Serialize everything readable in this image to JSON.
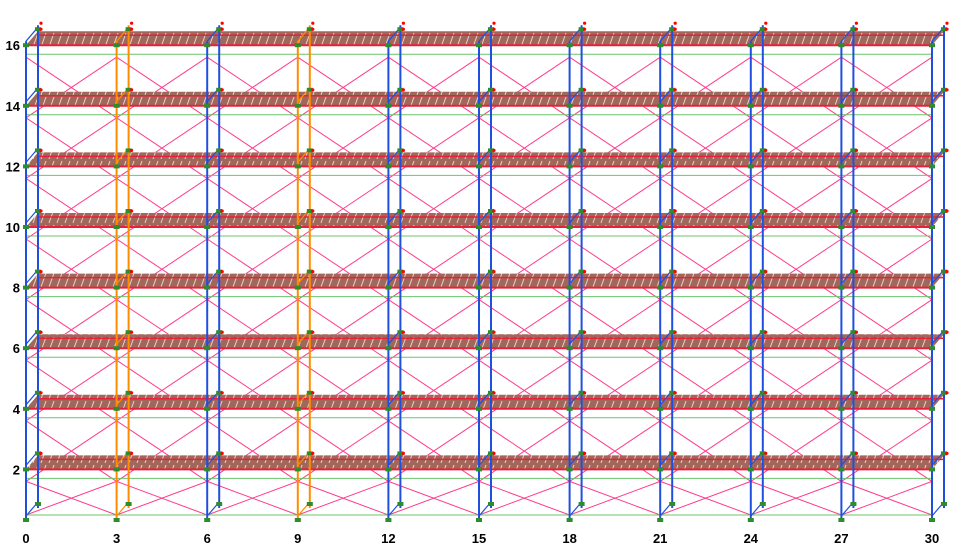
{
  "x_axis": {
    "labels": [
      "0",
      "3",
      "6",
      "9",
      "12",
      "15",
      "18",
      "21",
      "24",
      "27",
      "30"
    ],
    "values": [
      0,
      3,
      6,
      9,
      12,
      15,
      18,
      21,
      24,
      27,
      30
    ]
  },
  "y_axis": {
    "labels": [
      "2",
      "4",
      "6",
      "8",
      "10",
      "12",
      "14",
      "16"
    ],
    "values": [
      2,
      4,
      6,
      8,
      10,
      12,
      14,
      16
    ]
  },
  "orange_frames_at": [
    3,
    9
  ],
  "colors": {
    "frame": "#1f4fe0",
    "stair_frame": "#ff8c00",
    "deck": "#a0685a",
    "deck_edge": "#e8203c",
    "brace": "#ff3c8c",
    "ledger": "#6cc46c",
    "node": "#2e8b2e",
    "marker": "#ff0000"
  }
}
